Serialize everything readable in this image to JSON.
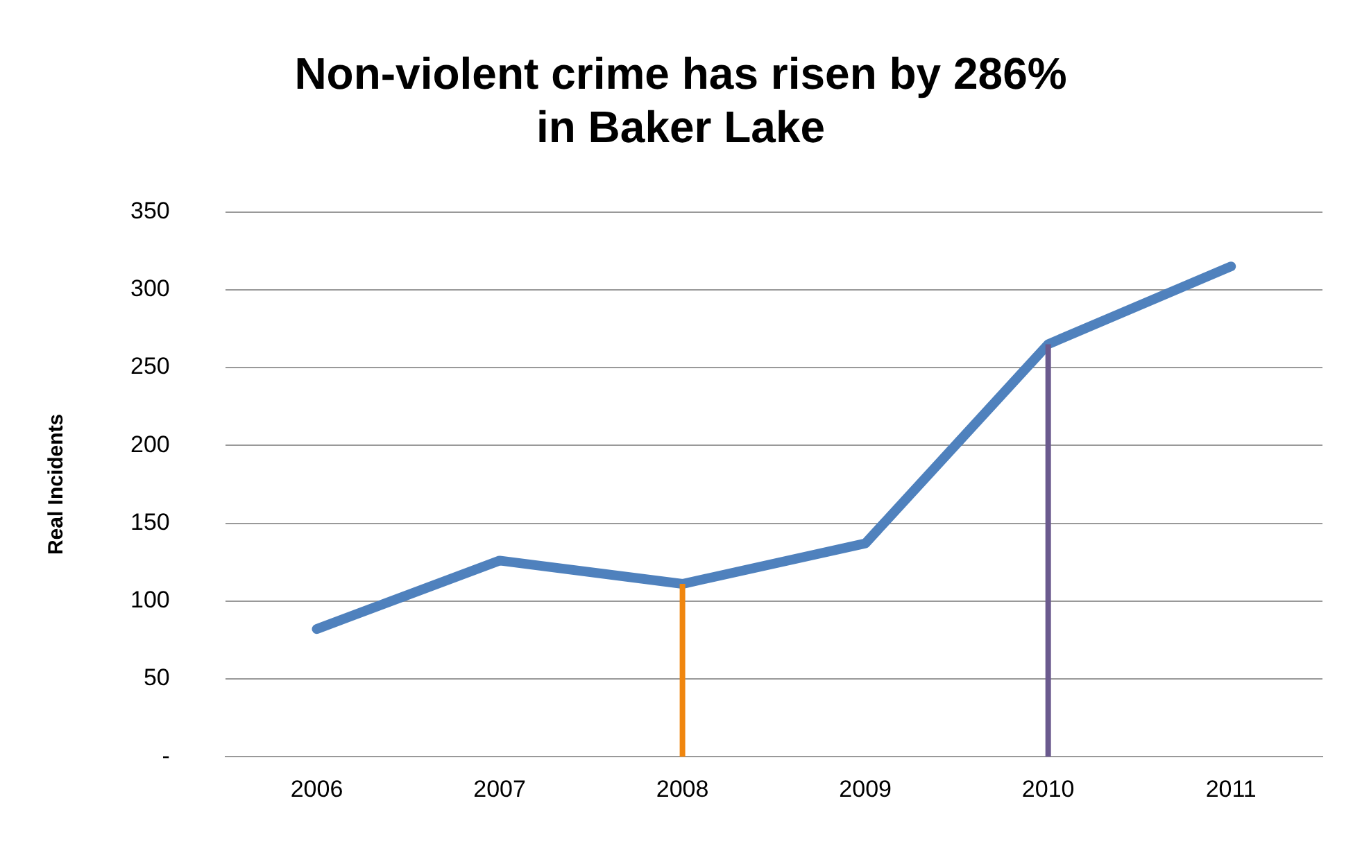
{
  "chart_data": {
    "type": "line",
    "title": [
      "Non-violent crime has risen by 286%",
      "in Baker Lake"
    ],
    "ylabel": "Real Incidents",
    "categories": [
      "2006",
      "2007",
      "2008",
      "2009",
      "2010",
      "2011"
    ],
    "series": [
      {
        "color": "#4f81bd",
        "values": [
          82,
          126,
          111,
          137,
          265,
          315
        ]
      }
    ],
    "ylim": [
      0,
      350
    ],
    "yticks": [
      {
        "value": 0,
        "label": "-"
      },
      50,
      100,
      150,
      200,
      250,
      300,
      350
    ],
    "grid": "y",
    "legend": false,
    "marker": "none",
    "ref_lines": [
      {
        "axis": "x",
        "value": "2008",
        "color": "#f0860e"
      },
      {
        "axis": "x",
        "value": "2010",
        "color": "#6b5a8e"
      }
    ]
  }
}
